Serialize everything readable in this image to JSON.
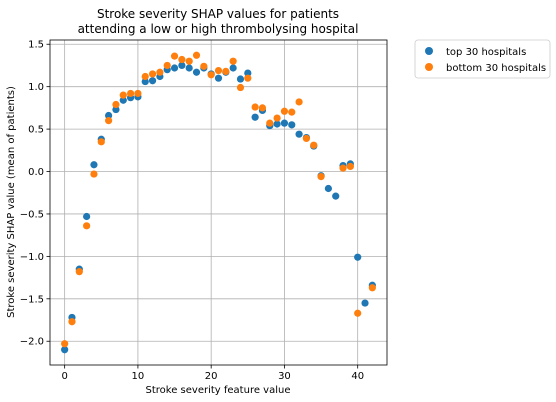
{
  "chart_data": {
    "type": "scatter",
    "title_lines": [
      "Stroke severity SHAP values for patients",
      "attending a low or high thrombolysing hospital"
    ],
    "xlabel": "Stroke severity feature value",
    "ylabel": "Stroke severity SHAP value (mean of patients)",
    "xlim": [
      -2,
      44
    ],
    "ylim": [
      -2.28,
      1.55
    ],
    "xticks": [
      0,
      10,
      20,
      30,
      40
    ],
    "yticks": [
      -2.0,
      -1.5,
      -1.0,
      -0.5,
      0.0,
      0.5,
      1.0,
      1.5
    ],
    "xtick_labels": [
      "0",
      "10",
      "20",
      "30",
      "40"
    ],
    "ytick_labels": [
      "−2.0",
      "−1.5",
      "−1.0",
      "−0.5",
      "0.0",
      "0.5",
      "1.0",
      "1.5"
    ],
    "grid": true,
    "legend_position": "outside-top-right",
    "series": [
      {
        "name": "top 30 hospitals",
        "color": "#1f77b4",
        "points": [
          [
            0,
            -2.1
          ],
          [
            1,
            -1.72
          ],
          [
            2,
            -1.15
          ],
          [
            3,
            -0.53
          ],
          [
            4,
            0.08
          ],
          [
            5,
            0.38
          ],
          [
            6,
            0.66
          ],
          [
            7,
            0.73
          ],
          [
            8,
            0.84
          ],
          [
            9,
            0.87
          ],
          [
            10,
            0.88
          ],
          [
            11,
            1.06
          ],
          [
            12,
            1.07
          ],
          [
            13,
            1.12
          ],
          [
            14,
            1.2
          ],
          [
            15,
            1.22
          ],
          [
            16,
            1.25
          ],
          [
            17,
            1.22
          ],
          [
            18,
            1.17
          ],
          [
            19,
            1.22
          ],
          [
            20,
            1.15
          ],
          [
            21,
            1.1
          ],
          [
            22,
            1.17
          ],
          [
            23,
            1.22
          ],
          [
            24,
            1.09
          ],
          [
            25,
            1.16
          ],
          [
            26,
            0.64
          ],
          [
            27,
            0.72
          ],
          [
            28,
            0.54
          ],
          [
            29,
            0.56
          ],
          [
            30,
            0.57
          ],
          [
            31,
            0.55
          ],
          [
            32,
            0.44
          ],
          [
            33,
            0.4
          ],
          [
            34,
            0.3
          ],
          [
            35,
            -0.05
          ],
          [
            36,
            -0.2
          ],
          [
            37,
            -0.29
          ],
          [
            38,
            0.07
          ],
          [
            39,
            0.09
          ],
          [
            40,
            -1.01
          ],
          [
            41,
            -1.55
          ],
          [
            42,
            -1.34
          ]
        ]
      },
      {
        "name": "bottom 30 hospitals",
        "color": "#ff7f0e",
        "points": [
          [
            0,
            -2.03
          ],
          [
            1,
            -1.77
          ],
          [
            2,
            -1.18
          ],
          [
            3,
            -0.64
          ],
          [
            4,
            -0.03
          ],
          [
            5,
            0.35
          ],
          [
            6,
            0.6
          ],
          [
            7,
            0.79
          ],
          [
            8,
            0.9
          ],
          [
            9,
            0.92
          ],
          [
            10,
            0.92
          ],
          [
            11,
            1.12
          ],
          [
            12,
            1.15
          ],
          [
            13,
            1.17
          ],
          [
            14,
            1.25
          ],
          [
            15,
            1.36
          ],
          [
            16,
            1.32
          ],
          [
            17,
            1.3
          ],
          [
            18,
            1.37
          ],
          [
            19,
            1.24
          ],
          [
            20,
            1.14
          ],
          [
            21,
            1.19
          ],
          [
            22,
            1.18
          ],
          [
            23,
            1.3
          ],
          [
            24,
            0.99
          ],
          [
            25,
            1.1
          ],
          [
            26,
            0.76
          ],
          [
            27,
            0.75
          ],
          [
            28,
            0.57
          ],
          [
            29,
            0.63
          ],
          [
            30,
            0.71
          ],
          [
            31,
            0.7
          ],
          [
            32,
            0.82
          ],
          [
            33,
            0.39
          ],
          [
            34,
            0.31
          ],
          [
            35,
            -0.06
          ],
          [
            38,
            0.04
          ],
          [
            39,
            0.06
          ],
          [
            40,
            -1.67
          ],
          [
            42,
            -1.37
          ]
        ]
      }
    ]
  }
}
